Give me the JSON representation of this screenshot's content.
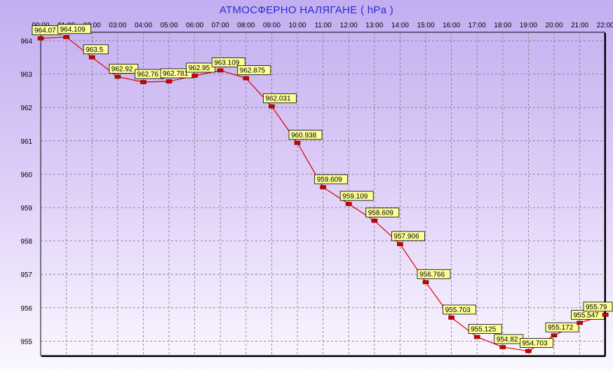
{
  "chart_data": {
    "type": "line",
    "title": "АТМОСФЕРНО НАЛЯГАНЕ  ( hPa )",
    "xlabel": "",
    "ylabel": "",
    "x": [
      "00:00",
      "01:00",
      "02:00",
      "03:00",
      "04:00",
      "05:00",
      "06:00",
      "07:00",
      "08:00",
      "09:00",
      "10:00",
      "11:00",
      "12:00",
      "13:00",
      "14:00",
      "15:00",
      "16:00",
      "17:00",
      "18:00",
      "19:00",
      "20:00",
      "21:00",
      "22:00"
    ],
    "yticks": [
      955,
      956,
      957,
      958,
      959,
      960,
      961,
      962,
      963,
      964
    ],
    "ylim": [
      954.6,
      964.2
    ],
    "grid": true,
    "series": [
      {
        "values": [
          964.07,
          964.109,
          963.5,
          962.92,
          962.76,
          962.781,
          962.95,
          963.109,
          962.875,
          962.031,
          960.938,
          959.609,
          959.109,
          958.609,
          957.906,
          956.766,
          955.703,
          955.125,
          954.82,
          954.703,
          955.172,
          955.547,
          955.79
        ],
        "labels": [
          "964.07",
          "964.109",
          "963.5",
          "962.92",
          "962.76",
          "962.781",
          "962.95",
          "963.109",
          "962.875",
          "962.031",
          "960.938",
          "959.609",
          "959.109",
          "958.609",
          "957.906",
          "956.766",
          "955.703",
          "955.125",
          "954.82",
          "954.703",
          "955.172",
          "955.547",
          "955.79"
        ]
      }
    ],
    "colors": {
      "line": "#e00000",
      "marker": "#cc0000",
      "label_bg": "#ffff99",
      "title": "#2b2bd6",
      "grid": "#777777"
    }
  }
}
